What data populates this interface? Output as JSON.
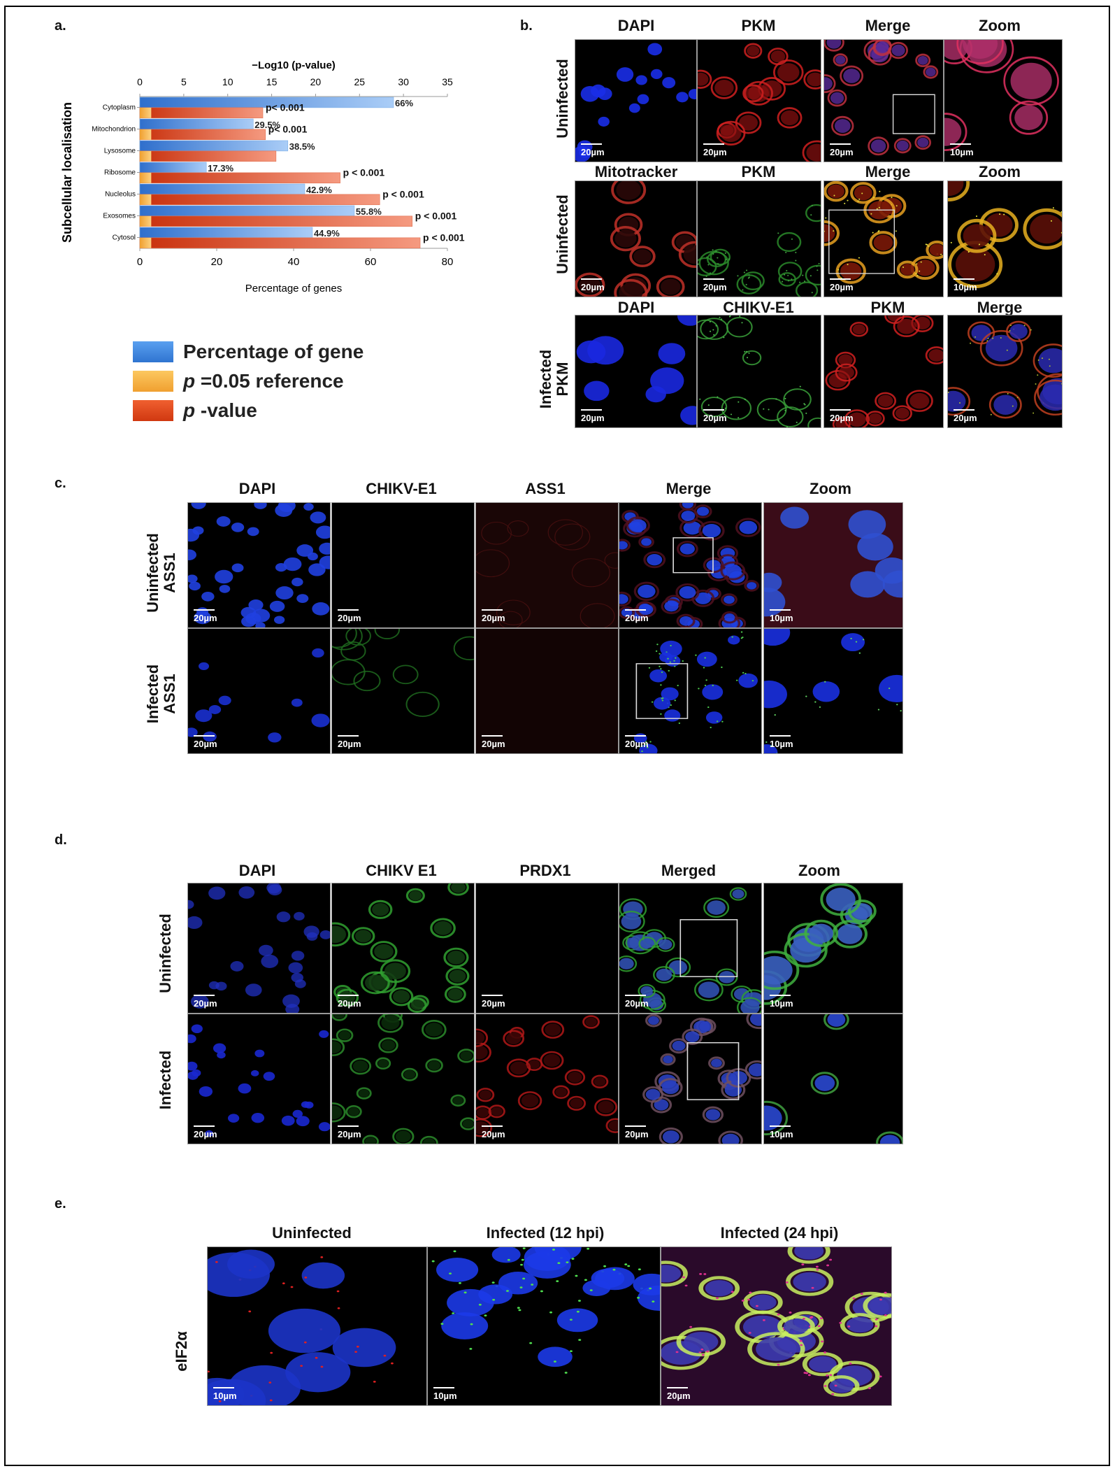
{
  "panel_labels": {
    "a": "a.",
    "b": "b.",
    "c": "c.",
    "d": "d.",
    "e": "e."
  },
  "chart_data": {
    "type": "bar",
    "title": "",
    "top_axis_label": "−Log10 (p-value)",
    "top_axis_ticks": [
      0,
      5,
      10,
      15,
      20,
      25,
      30,
      35
    ],
    "top_axis_range": [
      0,
      35
    ],
    "xlabel": "Percentage of genes",
    "x_ticks": [
      0,
      20,
      40,
      60,
      80
    ],
    "x_range": [
      0,
      80
    ],
    "ylabel": "Subcellular localisation",
    "categories": [
      "Cytoplasm",
      "Mitochondrion",
      "Lysosome",
      "Ribosome",
      "Nucleolus",
      "Exosomes",
      "Cytosol"
    ],
    "series": [
      {
        "name": "Percentage of gene",
        "axis": "bottom",
        "color": "#3f87e3",
        "values": [
          66,
          29.5,
          38.5,
          17.3,
          42.9,
          55.8,
          44.9
        ],
        "labels": [
          "66%",
          "29.5%",
          "38.5%",
          "17.3%",
          "42.9%",
          "55.8%",
          "44.9%"
        ]
      },
      {
        "name": "p=0.05 reference",
        "axis": "top",
        "color": "#f5b041",
        "values": [
          1.3,
          1.3,
          1.3,
          1.3,
          1.3,
          1.3,
          1.3
        ]
      },
      {
        "name": "p-value",
        "axis": "top",
        "color": "#e8471a",
        "values": [
          14,
          14.3,
          15.5,
          22.8,
          27.3,
          31,
          31.9
        ],
        "labels": [
          "p< 0.001",
          "p< 0.001",
          "",
          "p < 0.001",
          "p < 0.001",
          "p < 0.001",
          "p < 0.001"
        ]
      }
    ],
    "legend_position": "bottom-left"
  },
  "legend": [
    {
      "key": "gene",
      "pre": "",
      "italic": "",
      "text": "Percentage of gene",
      "color": "#3f87e3"
    },
    {
      "key": "ref",
      "pre": "",
      "italic": "p",
      "text": " =0.05 reference",
      "color": "#f5b041"
    },
    {
      "key": "pval",
      "pre": "",
      "italic": "p",
      "text": " -value",
      "color": "#e8471a"
    }
  ],
  "panel_b": {
    "row1": {
      "label": "Uninfected",
      "columns": [
        "DAPI",
        "PKM",
        "Merge",
        "Zoom"
      ],
      "scales": [
        "20µm",
        "20µm",
        "20µm",
        "10µm"
      ]
    },
    "row2": {
      "label": "Uninfected",
      "columns": [
        "Mitotracker",
        "PKM",
        "Merge",
        "Zoom"
      ],
      "scales": [
        "20µm",
        "20µm",
        "20µm",
        "10µm"
      ]
    },
    "row3": {
      "label_line1": "Infected",
      "label_line2": "PKM",
      "columns": [
        "DAPI",
        "CHIKV-E1",
        "PKM",
        "Merge"
      ],
      "scales": [
        "20µm",
        "20µm",
        "20µm",
        "20µm"
      ]
    }
  },
  "panel_c": {
    "columns": [
      "DAPI",
      "CHIKV-E1",
      "ASS1",
      "Merge",
      "Zoom"
    ],
    "row1": {
      "label_line1": "Uninfected",
      "label_line2": "ASS1",
      "scales": [
        "20µm",
        "20µm",
        "20µm",
        "20µm",
        "10µm"
      ]
    },
    "row2": {
      "label_line1": "Infected",
      "label_line2": "ASS1",
      "scales": [
        "20µm",
        "20µm",
        "20µm",
        "20µm",
        "10µm"
      ]
    }
  },
  "panel_d": {
    "columns": [
      "DAPI",
      "CHIKV E1",
      "PRDX1",
      "Merged",
      "Zoom"
    ],
    "row1": {
      "label": "Uninfected",
      "scales": [
        "20µm",
        "20µm",
        "20µm",
        "20µm",
        "10µm"
      ]
    },
    "row2": {
      "label": "Infected",
      "scales": [
        "20µm",
        "20µm",
        "20µm",
        "20µm",
        "10µm"
      ]
    }
  },
  "panel_e": {
    "columns": [
      "Uninfected",
      "Infected (12 hpi)",
      "Infected (24 hpi)"
    ],
    "row_label": "eIF2α",
    "scales": [
      "10µm",
      "10µm",
      "20µm"
    ]
  }
}
